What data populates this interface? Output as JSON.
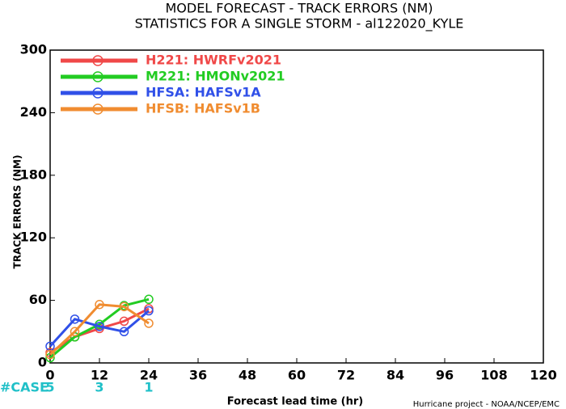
{
  "chart_data": {
    "type": "line",
    "title": "MODEL FORECAST - TRACK ERRORS (NM)",
    "subtitle": "STATISTICS FOR A SINGLE STORM - al122020_KYLE",
    "x_label": "Forecast lead time (hr)",
    "y_label": "TRACK ERRORS (NM)",
    "footer": "Hurricane project - NOAA/NCEP/EMC",
    "x": [
      0,
      6,
      12,
      18,
      24
    ],
    "series": [
      {
        "name": "H221: HWRFv2021",
        "color": "#f04848",
        "values": [
          10,
          25,
          33,
          40,
          52
        ]
      },
      {
        "name": "M221: HMONv2021",
        "color": "#22cc22",
        "values": [
          5,
          25,
          37,
          55,
          61
        ]
      },
      {
        "name": "HFSA: HAFSv1A",
        "color": "#3050e8",
        "values": [
          16,
          42,
          35,
          30,
          50
        ]
      },
      {
        "name": "HFSB: HAFSv1B",
        "color": "#f08c30",
        "values": [
          8,
          30,
          56,
          54,
          38
        ]
      }
    ],
    "xlim": [
      0,
      120
    ],
    "xticks": [
      0,
      12,
      24,
      36,
      48,
      60,
      72,
      84,
      96,
      108,
      120
    ],
    "ylim": [
      0,
      300
    ],
    "yticks": [
      0,
      60,
      120,
      180,
      240,
      300
    ],
    "legend": "upper left",
    "cases": {
      "label": "#CASE",
      "color": "#20c0c8",
      "x": [
        0,
        12,
        24
      ],
      "values": [
        5,
        3,
        1
      ]
    }
  }
}
